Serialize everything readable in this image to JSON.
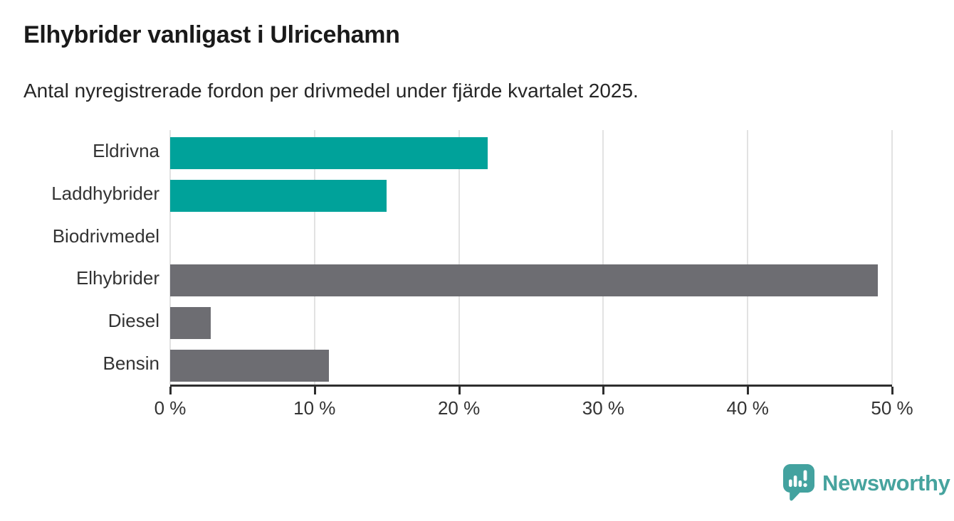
{
  "header": {
    "title": "Elhybrider vanligast i Ulricehamn",
    "subtitle": "Antal nyregistrerade fordon per drivmedel under fjärde kvartalet 2025."
  },
  "chart_data": {
    "type": "bar",
    "orientation": "horizontal",
    "title": "Elhybrider vanligast i Ulricehamn",
    "subtitle": "Antal nyregistrerade fordon per drivmedel under fjärde kvartalet 2025.",
    "categories": [
      "Eldrivna",
      "Laddhybrider",
      "Biodrivmedel",
      "Elhybrider",
      "Diesel",
      "Bensin"
    ],
    "values": [
      22,
      15,
      0,
      49,
      2.8,
      11
    ],
    "unit": "%",
    "xlim": [
      0,
      50
    ],
    "x_tick_values": [
      0,
      10,
      20,
      30,
      40,
      50
    ],
    "x_tick_labels": [
      "0 %",
      "10 %",
      "20 %",
      "30 %",
      "40 %",
      "50 %"
    ],
    "grid": true,
    "legend_position": "none",
    "bar_colors": [
      "#00A29A",
      "#00A29A",
      "#00A29A",
      "#6D6D72",
      "#6D6D72",
      "#6D6D72"
    ],
    "highlight_color": "#00A29A",
    "default_color": "#6D6D72",
    "gridline_color": "#e2e2e2",
    "axis_color": "#2e2e2e"
  },
  "footer": {
    "brand": "Newsworthy",
    "brand_color": "#46A39E",
    "logo_icon": "newsworthy-bubble-barchart-icon"
  }
}
